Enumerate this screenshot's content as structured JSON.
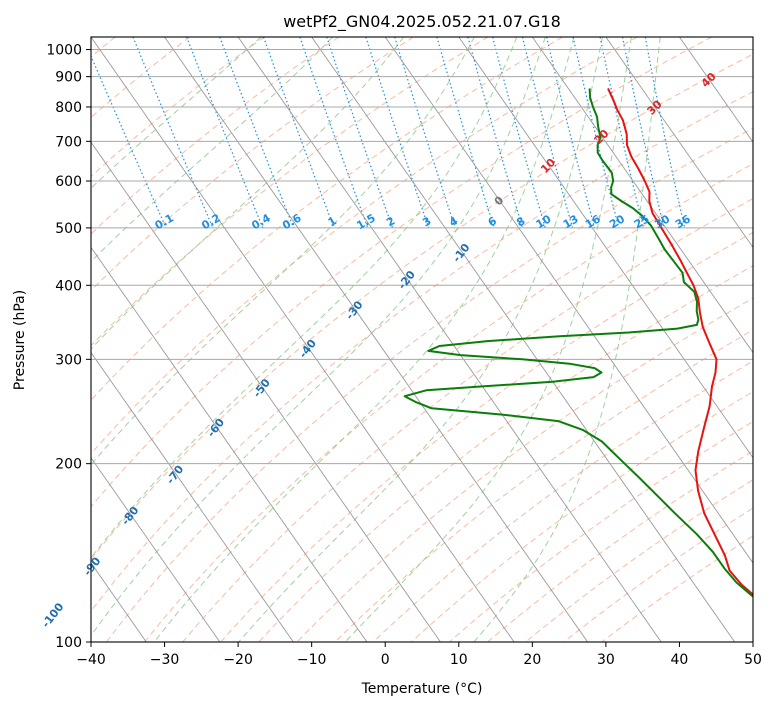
{
  "chart_data": {
    "type": "line",
    "subtype": "skew-t log-p diagram",
    "title": "wetPf2_GN04.2025.052.21.07.G18",
    "xlabel": "Temperature (°C)",
    "ylabel": "Pressure (hPa)",
    "xlim": [
      -40,
      50
    ],
    "ylim": [
      1050,
      100
    ],
    "y_scale": "log",
    "x_ticks": [
      "−40",
      "−30",
      "−20",
      "−10",
      "0",
      "10",
      "20",
      "30",
      "40",
      "50"
    ],
    "y_ticks": [
      "100",
      "200",
      "300",
      "400",
      "500",
      "600",
      "700",
      "800",
      "900",
      "1000"
    ],
    "grid": true,
    "colors": {
      "temperature": "#e8120f",
      "dewpoint": "#0a7d0a",
      "isotherm": "#9a9a9a",
      "dry_adiabat": "#f4a582",
      "moist_adiabat": "#8fc98f",
      "mixing_ratio": "#1f8fe0",
      "lcl_curve": "#d2b48c",
      "moist_label": "#1f6fb0",
      "dry_label": "#d62728"
    },
    "series": [
      {
        "name": "",
        "role": "temperature",
        "points": [
          {
            "p": 860,
            "t": 25.4
          },
          {
            "p": 820,
            "t": 25.0
          },
          {
            "p": 790,
            "t": 24.6
          },
          {
            "p": 760,
            "t": 24.4
          },
          {
            "p": 720,
            "t": 23.6
          },
          {
            "p": 690,
            "t": 22.6
          },
          {
            "p": 660,
            "t": 22.1
          },
          {
            "p": 630,
            "t": 21.9
          },
          {
            "p": 600,
            "t": 21.6
          },
          {
            "p": 575,
            "t": 21.2
          },
          {
            "p": 555,
            "t": 20.3
          },
          {
            "p": 530,
            "t": 19.6
          },
          {
            "p": 500,
            "t": 19.4
          },
          {
            "p": 470,
            "t": 19.2
          },
          {
            "p": 440,
            "t": 18.9
          },
          {
            "p": 420,
            "t": 18.6
          },
          {
            "p": 400,
            "t": 18.3
          },
          {
            "p": 380,
            "t": 17.7
          },
          {
            "p": 360,
            "t": 16.6
          },
          {
            "p": 340,
            "t": 15.6
          },
          {
            "p": 320,
            "t": 15.0
          },
          {
            "p": 300,
            "t": 14.4
          },
          {
            "p": 285,
            "t": 13.0
          },
          {
            "p": 270,
            "t": 11.2
          },
          {
            "p": 250,
            "t": 9.0
          },
          {
            "p": 230,
            "t": 6.2
          },
          {
            "p": 210,
            "t": 3.2
          },
          {
            "p": 195,
            "t": 1.0
          },
          {
            "p": 180,
            "t": -0.6
          },
          {
            "p": 165,
            "t": -1.9
          },
          {
            "p": 150,
            "t": -2.6
          },
          {
            "p": 140,
            "t": -3.1
          },
          {
            "p": 132,
            "t": -3.9
          },
          {
            "p": 125,
            "t": -3.6
          },
          {
            "p": 118,
            "t": -2.7
          },
          {
            "p": 110,
            "t": -1.7
          },
          {
            "p": 104,
            "t": -0.8
          },
          {
            "p": 100,
            "t": -0.1
          }
        ]
      },
      {
        "name": "",
        "role": "dewpoint",
        "points": [
          {
            "p": 860,
            "t": 22.9
          },
          {
            "p": 830,
            "t": 22.1
          },
          {
            "p": 800,
            "t": 21.6
          },
          {
            "p": 770,
            "t": 21.2
          },
          {
            "p": 740,
            "t": 20.4
          },
          {
            "p": 710,
            "t": 19.7
          },
          {
            "p": 690,
            "t": 18.6
          },
          {
            "p": 670,
            "t": 17.9
          },
          {
            "p": 650,
            "t": 17.8
          },
          {
            "p": 620,
            "t": 17.9
          },
          {
            "p": 600,
            "t": 17.3
          },
          {
            "p": 585,
            "t": 16.4
          },
          {
            "p": 570,
            "t": 15.8
          },
          {
            "p": 555,
            "t": 16.5
          },
          {
            "p": 540,
            "t": 17.4
          },
          {
            "p": 525,
            "t": 17.9
          },
          {
            "p": 505,
            "t": 18.2
          },
          {
            "p": 480,
            "t": 18.0
          },
          {
            "p": 460,
            "t": 17.8
          },
          {
            "p": 440,
            "t": 17.9
          },
          {
            "p": 420,
            "t": 18.0
          },
          {
            "p": 405,
            "t": 17.3
          },
          {
            "p": 390,
            "t": 17.8
          },
          {
            "p": 375,
            "t": 17.2
          },
          {
            "p": 362,
            "t": 16.3
          },
          {
            "p": 350,
            "t": 15.7
          },
          {
            "p": 343,
            "t": 15.0
          },
          {
            "p": 338,
            "t": 12.0
          },
          {
            "p": 333,
            "t": 5.0
          },
          {
            "p": 328,
            "t": -5.0
          },
          {
            "p": 322,
            "t": -15.0
          },
          {
            "p": 316,
            "t": -22.0
          },
          {
            "p": 310,
            "t": -24.0
          },
          {
            "p": 305,
            "t": -20.0
          },
          {
            "p": 300,
            "t": -12.0
          },
          {
            "p": 295,
            "t": -6.0
          },
          {
            "p": 290,
            "t": -3.0
          },
          {
            "p": 285,
            "t": -2.5
          },
          {
            "p": 280,
            "t": -4.0
          },
          {
            "p": 275,
            "t": -10.0
          },
          {
            "p": 270,
            "t": -20.0
          },
          {
            "p": 266,
            "t": -28.0
          },
          {
            "p": 260,
            "t": -31.5
          },
          {
            "p": 254,
            "t": -30.5
          },
          {
            "p": 248,
            "t": -29.0
          },
          {
            "p": 242,
            "t": -20.0
          },
          {
            "p": 236,
            "t": -13.0
          },
          {
            "p": 228,
            "t": -10.5
          },
          {
            "p": 218,
            "t": -9.0
          },
          {
            "p": 205,
            "t": -8.3
          },
          {
            "p": 190,
            "t": -7.4
          },
          {
            "p": 178,
            "t": -6.7
          },
          {
            "p": 165,
            "t": -5.9
          },
          {
            "p": 152,
            "t": -4.9
          },
          {
            "p": 142,
            "t": -4.4
          },
          {
            "p": 133,
            "t": -4.4
          },
          {
            "p": 126,
            "t": -4.1
          },
          {
            "p": 120,
            "t": -3.3
          },
          {
            "p": 113,
            "t": -1.9
          },
          {
            "p": 107,
            "t": -0.6
          },
          {
            "p": 103,
            "t": 0.0
          },
          {
            "p": 100,
            "t": 0.2
          }
        ]
      }
    ],
    "isotherms": [
      -140,
      -130,
      -120,
      -110,
      -100,
      -90,
      -80,
      -70,
      -60,
      -50,
      -40,
      -30,
      -20,
      -10,
      0,
      10,
      20,
      30,
      40,
      50
    ],
    "dry_adiabats_theta_c": [
      -40,
      -30,
      -20,
      -10,
      0,
      10,
      20,
      30,
      40,
      50,
      60,
      70,
      80,
      90,
      100,
      110,
      120,
      130,
      140,
      150,
      160,
      170,
      180,
      190,
      200
    ],
    "moist_adiabats_t1000_c": [
      -20,
      -10,
      0,
      10,
      16,
      20,
      24,
      28,
      32,
      36
    ],
    "mixing_ratio_lines": [
      "0.1",
      "0.2",
      "0.4",
      "0.6",
      "1",
      "1.5",
      "2",
      "3",
      "4",
      "6",
      "8",
      "10",
      "13",
      "16",
      "20",
      "25",
      "30",
      "36"
    ],
    "mixing_ratio_label_pressure": 500,
    "moist_adiabat_labels": [
      {
        "text": "-100",
        "t": -100,
        "p": 110
      },
      {
        "text": "-90",
        "t": -90,
        "p": 133
      },
      {
        "text": "-80",
        "t": -80,
        "p": 162
      },
      {
        "text": "-70",
        "t": -70,
        "p": 190
      },
      {
        "text": "-60",
        "t": -60,
        "p": 228
      },
      {
        "text": "-50",
        "t": -50,
        "p": 266
      },
      {
        "text": "-40",
        "t": -40,
        "p": 310
      },
      {
        "text": "-30",
        "t": -30,
        "p": 360
      },
      {
        "text": "-20",
        "t": -20,
        "p": 405
      },
      {
        "text": "-10",
        "t": -10,
        "p": 450
      }
    ],
    "dry_adiabat_labels": [
      {
        "text": "0",
        "t": 0,
        "p": 550,
        "color": "gray"
      },
      {
        "text": "10",
        "t": 10,
        "p": 630
      },
      {
        "text": "20",
        "t": 20,
        "p": 705
      },
      {
        "text": "30",
        "t": 30,
        "p": 790
      },
      {
        "text": "40",
        "t": 40,
        "p": 880
      }
    ]
  }
}
